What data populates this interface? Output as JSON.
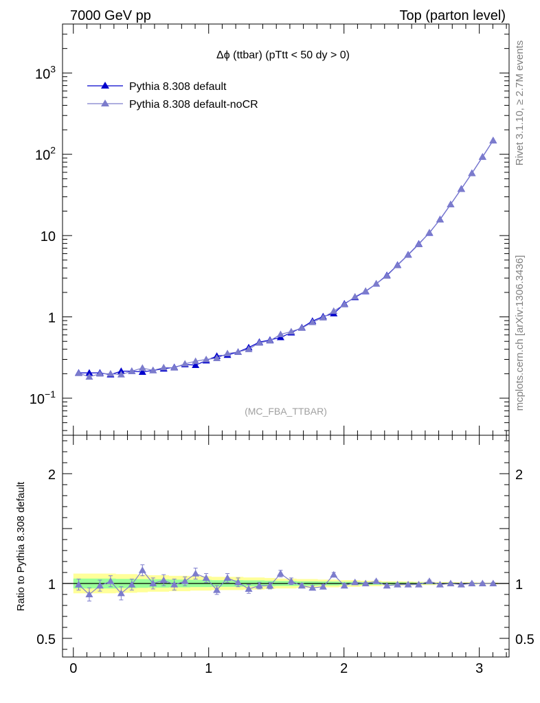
{
  "header": {
    "left": "7000 GeV pp",
    "right": "Top (parton level)"
  },
  "side": {
    "rivet": "Rivet 3.1.10, ≥ 2.7M events",
    "mcplots": "mcplots.cern.ch [arXiv:1306.3436]"
  },
  "chart_data": [
    {
      "type": "line",
      "title": "Δϕ (ttbar) (pTtt < 50 dy > 0)",
      "watermark": "(MC_FBA_TTBAR)",
      "yscale": "log",
      "xlim": [
        -0.08,
        3.22
      ],
      "ylim": [
        0.035,
        4000
      ],
      "y_ticks": [
        {
          "value": 0.1,
          "base": "10",
          "exp": "−1"
        },
        {
          "value": 1,
          "base": "1",
          "exp": ""
        },
        {
          "value": 10,
          "base": "10",
          "exp": ""
        },
        {
          "value": 100,
          "base": "10",
          "exp": "2"
        },
        {
          "value": 1000,
          "base": "10",
          "exp": "3"
        }
      ],
      "legend_position": "top-left",
      "x": [
        0.0393,
        0.1178,
        0.1963,
        0.2749,
        0.3534,
        0.432,
        0.5105,
        0.589,
        0.6676,
        0.7461,
        0.8247,
        0.9032,
        0.9817,
        1.0603,
        1.1388,
        1.2174,
        1.2959,
        1.3744,
        1.453,
        1.5315,
        1.6101,
        1.6886,
        1.7671,
        1.8457,
        1.9242,
        2.0028,
        2.0813,
        2.1598,
        2.2384,
        2.3169,
        2.3955,
        2.474,
        2.5525,
        2.6311,
        2.7096,
        2.7882,
        2.8667,
        2.9452,
        3.0238,
        3.1023
      ],
      "series": [
        {
          "name": "Pythia 8.308 default",
          "color": "#0000cc",
          "marker": "triangle",
          "values": [
            0.205,
            0.205,
            0.205,
            0.195,
            0.215,
            0.215,
            0.21,
            0.22,
            0.23,
            0.24,
            0.26,
            0.255,
            0.29,
            0.33,
            0.34,
            0.37,
            0.42,
            0.49,
            0.52,
            0.56,
            0.64,
            0.74,
            0.89,
            1.01,
            1.1,
            1.45,
            1.74,
            2.06,
            2.55,
            3.25,
            4.35,
            5.82,
            7.9,
            10.8,
            15.8,
            24.2,
            37.5,
            58.5,
            93.0,
            148
          ]
        },
        {
          "name": "Pythia 8.308 default-noCR",
          "color": "#7c7ccc",
          "marker": "triangle",
          "values": [
            0.203,
            0.183,
            0.2,
            0.2,
            0.195,
            0.215,
            0.235,
            0.22,
            0.238,
            0.237,
            0.265,
            0.285,
            0.3,
            0.31,
            0.355,
            0.37,
            0.4,
            0.48,
            0.51,
            0.61,
            0.66,
            0.73,
            0.86,
            0.98,
            1.18,
            1.42,
            1.77,
            2.08,
            2.56,
            3.2,
            4.31,
            5.77,
            7.8,
            10.9,
            15.7,
            24.1,
            37.3,
            58.3,
            92.7,
            148
          ]
        }
      ]
    },
    {
      "type": "line",
      "ylabel": "Ratio to Pythia 8.308 default",
      "xlim": [
        -0.08,
        3.22
      ],
      "ylim": [
        0.33,
        2.35
      ],
      "x_ticks": [
        0,
        1,
        2,
        3
      ],
      "y_ticks_labeled": [
        0.5,
        1,
        2
      ],
      "reference_line": 1,
      "x": [
        0.0393,
        0.1178,
        0.1963,
        0.2749,
        0.3534,
        0.432,
        0.5105,
        0.589,
        0.6676,
        0.7461,
        0.8247,
        0.9032,
        0.9817,
        1.0603,
        1.1388,
        1.2174,
        1.2959,
        1.3744,
        1.453,
        1.5315,
        1.6101,
        1.6886,
        1.7671,
        1.8457,
        1.9242,
        2.0028,
        2.0813,
        2.1598,
        2.2384,
        2.3169,
        2.3955,
        2.474,
        2.5525,
        2.6311,
        2.7096,
        2.7882,
        2.8667,
        2.9452,
        3.0238,
        3.1023
      ],
      "band_yellow_halfwidth": [
        0.09,
        0.09,
        0.09,
        0.09,
        0.085,
        0.085,
        0.08,
        0.075,
        0.075,
        0.07,
        0.07,
        0.065,
        0.065,
        0.06,
        0.06,
        0.06,
        0.055,
        0.055,
        0.05,
        0.045,
        0.045,
        0.04,
        0.04,
        0.035,
        0.035,
        0.03,
        0.03,
        0.025,
        0.025,
        0.02,
        0.02,
        0.018,
        0.015,
        0.015,
        0.012,
        0.012,
        0.01,
        0.01,
        0.008,
        0.008
      ],
      "band_green_halfwidth": [
        0.045,
        0.045,
        0.045,
        0.045,
        0.042,
        0.042,
        0.04,
        0.038,
        0.038,
        0.035,
        0.035,
        0.033,
        0.033,
        0.03,
        0.03,
        0.03,
        0.028,
        0.028,
        0.025,
        0.023,
        0.023,
        0.02,
        0.02,
        0.018,
        0.018,
        0.015,
        0.015,
        0.013,
        0.013,
        0.01,
        0.01,
        0.009,
        0.008,
        0.008,
        0.006,
        0.006,
        0.005,
        0.005,
        0.004,
        0.004
      ],
      "series": [
        {
          "name": "Pythia 8.308 default-noCR",
          "color": "#7c7ccc",
          "values": [
            0.99,
            0.9,
            0.98,
            1.02,
            0.91,
            0.99,
            1.12,
            1.0,
            1.03,
            0.99,
            1.02,
            1.09,
            1.05,
            0.94,
            1.05,
            1.01,
            0.95,
            0.98,
            0.98,
            1.09,
            1.02,
            0.98,
            0.96,
            0.97,
            1.08,
            0.98,
            1.01,
            1.0,
            1.02,
            0.98,
            0.99,
            0.99,
            0.99,
            1.02,
            0.99,
            1.0,
            0.99,
            1.0,
            1.0,
            1.0
          ],
          "errors": [
            0.05,
            0.06,
            0.05,
            0.05,
            0.06,
            0.05,
            0.05,
            0.05,
            0.05,
            0.05,
            0.04,
            0.05,
            0.04,
            0.04,
            0.04,
            0.04,
            0.04,
            0.03,
            0.03,
            0.03,
            0.03,
            0.02,
            0.02,
            0.02,
            0.02,
            0.02,
            0.01,
            0.01,
            0.01,
            0.01,
            0.01,
            0.01,
            0.01,
            0.01,
            0.01,
            0.01,
            0.01,
            0.01,
            0.01,
            0.01
          ]
        }
      ]
    }
  ]
}
